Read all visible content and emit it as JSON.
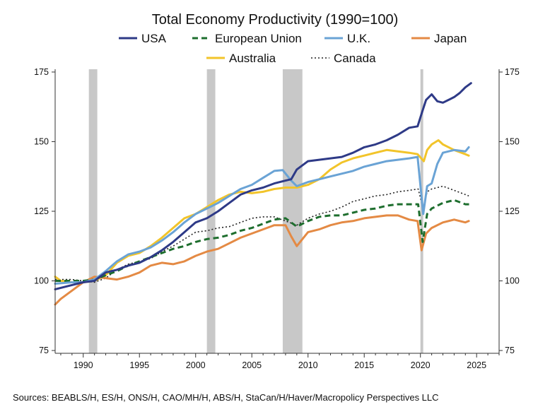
{
  "chart_data": {
    "type": "line",
    "title": "Total Economy Productivity (1990=100)",
    "source": "Sources:  BEABLS/H, ES/H, ONS/H, CAO/MH/H, ABS/H, StaCan/H/Haver/Macropolicy Perspectives LLC",
    "xlim": [
      1987.5,
      2027.0
    ],
    "ylim": [
      74,
      176
    ],
    "x_ticks": [
      1990,
      1995,
      2000,
      2005,
      2010,
      2015,
      2020,
      2025
    ],
    "x_tick_labels": [
      "1990",
      "1995",
      "2000",
      "2005",
      "2010",
      "2015",
      "2020",
      "2025"
    ],
    "y_ticks": [
      75,
      100,
      125,
      150,
      175
    ],
    "y_tick_labels": [
      "75",
      "100",
      "125",
      "150",
      "175"
    ],
    "right_y_tick_labels": [
      "75",
      "100",
      "125",
      "150",
      "175"
    ],
    "recessions": [
      [
        1990.5,
        1991.25
      ],
      [
        2001.0,
        2001.75
      ],
      [
        2007.75,
        2009.5
      ],
      [
        2020.0,
        2020.25
      ]
    ],
    "colors": {
      "recession": "#c8c8c8",
      "axis": "#333333"
    },
    "series": [
      {
        "name": "USA",
        "color": "#2e3a87",
        "dash": "none",
        "width": 3,
        "points": [
          [
            1987.5,
            97
          ],
          [
            1988,
            97.5
          ],
          [
            1989,
            98.5
          ],
          [
            1990,
            99.5
          ],
          [
            1991,
            100
          ],
          [
            1992,
            103
          ],
          [
            1993,
            104
          ],
          [
            1994,
            105.5
          ],
          [
            1995,
            106.5
          ],
          [
            1996,
            108.5
          ],
          [
            1997,
            111
          ],
          [
            1998,
            114
          ],
          [
            1999,
            117.5
          ],
          [
            2000,
            121
          ],
          [
            2001,
            122.5
          ],
          [
            2002,
            125
          ],
          [
            2003,
            128
          ],
          [
            2004,
            131
          ],
          [
            2005,
            132.5
          ],
          [
            2006,
            133.5
          ],
          [
            2007,
            135
          ],
          [
            2008,
            136
          ],
          [
            2008.5,
            136.5
          ],
          [
            2009,
            140
          ],
          [
            2010,
            143
          ],
          [
            2011,
            143.5
          ],
          [
            2012,
            144
          ],
          [
            2013,
            144.5
          ],
          [
            2014,
            146
          ],
          [
            2015,
            148
          ],
          [
            2016,
            149
          ],
          [
            2017,
            150.5
          ],
          [
            2018,
            152.5
          ],
          [
            2019,
            155
          ],
          [
            2019.75,
            155.5
          ],
          [
            2020.1,
            160
          ],
          [
            2020.5,
            165
          ],
          [
            2021,
            167
          ],
          [
            2021.5,
            164.5
          ],
          [
            2022,
            164
          ],
          [
            2022.5,
            165
          ],
          [
            2023,
            166
          ],
          [
            2023.5,
            167.5
          ],
          [
            2024,
            169.5
          ],
          [
            2024.5,
            171
          ]
        ]
      },
      {
        "name": "European Union",
        "color": "#1e6e2e",
        "dash": "8,5",
        "width": 3,
        "points": [
          [
            1987.5,
            100
          ],
          [
            1990,
            100
          ],
          [
            1991,
            100.5
          ],
          [
            1992,
            102
          ],
          [
            1993,
            103.5
          ],
          [
            1994,
            105.5
          ],
          [
            1995,
            107
          ],
          [
            1996,
            108.5
          ],
          [
            1997,
            110
          ],
          [
            1998,
            111.5
          ],
          [
            1999,
            112.5
          ],
          [
            2000,
            114
          ],
          [
            2001,
            115
          ],
          [
            2002,
            115.5
          ],
          [
            2003,
            116.5
          ],
          [
            2004,
            118
          ],
          [
            2005,
            119
          ],
          [
            2006,
            120.5
          ],
          [
            2007,
            122
          ],
          [
            2008,
            122.5
          ],
          [
            2009,
            119.5
          ],
          [
            2010,
            121.5
          ],
          [
            2011,
            123
          ],
          [
            2012,
            123.5
          ],
          [
            2013,
            123.5
          ],
          [
            2014,
            124.5
          ],
          [
            2015,
            125.5
          ],
          [
            2016,
            126
          ],
          [
            2017,
            127
          ],
          [
            2018,
            127.5
          ],
          [
            2019,
            127.5
          ],
          [
            2019.8,
            127.5
          ],
          [
            2020.2,
            114
          ],
          [
            2020.6,
            124
          ],
          [
            2021,
            126
          ],
          [
            2022,
            128
          ],
          [
            2023,
            129
          ],
          [
            2024,
            127.5
          ],
          [
            2024.5,
            127.5
          ]
        ]
      },
      {
        "name": "U.K.",
        "color": "#6aa3d5",
        "dash": "none",
        "width": 3,
        "points": [
          [
            1987.5,
            99
          ],
          [
            1989,
            99.5
          ],
          [
            1990,
            99.5
          ],
          [
            1991,
            100.5
          ],
          [
            1992,
            103.5
          ],
          [
            1993,
            107
          ],
          [
            1994,
            109.5
          ],
          [
            1995,
            110.5
          ],
          [
            1996,
            112
          ],
          [
            1997,
            114.5
          ],
          [
            1998,
            117.5
          ],
          [
            1999,
            121
          ],
          [
            2000,
            124
          ],
          [
            2001,
            126
          ],
          [
            2002,
            128
          ],
          [
            2003,
            130.5
          ],
          [
            2004,
            133
          ],
          [
            2005,
            134.5
          ],
          [
            2006,
            137
          ],
          [
            2007,
            139.5
          ],
          [
            2007.75,
            139.8
          ],
          [
            2008.5,
            136
          ],
          [
            2009,
            134
          ],
          [
            2010,
            135.5
          ],
          [
            2011,
            136.5
          ],
          [
            2012,
            137.5
          ],
          [
            2013,
            138.5
          ],
          [
            2014,
            139.5
          ],
          [
            2015,
            141
          ],
          [
            2016,
            142
          ],
          [
            2017,
            143
          ],
          [
            2018,
            143.5
          ],
          [
            2019,
            144
          ],
          [
            2019.75,
            144.5
          ],
          [
            2020.25,
            124
          ],
          [
            2020.6,
            134
          ],
          [
            2021,
            135
          ],
          [
            2021.5,
            142
          ],
          [
            2022,
            146
          ],
          [
            2023,
            147
          ],
          [
            2024,
            146.5
          ],
          [
            2024.3,
            148
          ]
        ]
      },
      {
        "name": "Japan",
        "color": "#e48a44",
        "dash": "none",
        "width": 3,
        "points": [
          [
            1987.5,
            91.5
          ],
          [
            1988,
            93.5
          ],
          [
            1989,
            96.5
          ],
          [
            1990,
            99.5
          ],
          [
            1991,
            101.5
          ],
          [
            1992,
            101
          ],
          [
            1993,
            100.5
          ],
          [
            1994,
            101.5
          ],
          [
            1995,
            103
          ],
          [
            1996,
            105.5
          ],
          [
            1997,
            106.5
          ],
          [
            1998,
            106
          ],
          [
            1999,
            107
          ],
          [
            2000,
            109
          ],
          [
            2001,
            110.5
          ],
          [
            2002,
            111.5
          ],
          [
            2003,
            113.5
          ],
          [
            2004,
            115.5
          ],
          [
            2005,
            117
          ],
          [
            2006,
            118.5
          ],
          [
            2007,
            120
          ],
          [
            2008,
            120
          ],
          [
            2008.5,
            116
          ],
          [
            2009,
            112.5
          ],
          [
            2010,
            117.5
          ],
          [
            2011,
            118.5
          ],
          [
            2012,
            120
          ],
          [
            2013,
            121
          ],
          [
            2014,
            121.5
          ],
          [
            2015,
            122.5
          ],
          [
            2016,
            123
          ],
          [
            2017,
            123.5
          ],
          [
            2018,
            123.5
          ],
          [
            2019,
            122
          ],
          [
            2019.75,
            121.5
          ],
          [
            2020.1,
            111
          ],
          [
            2020.5,
            117
          ],
          [
            2021,
            119
          ],
          [
            2022,
            121
          ],
          [
            2023,
            122
          ],
          [
            2024,
            121
          ],
          [
            2024.3,
            121.5
          ]
        ]
      },
      {
        "name": "Australia",
        "color": "#f2c42a",
        "dash": "none",
        "width": 3,
        "points": [
          [
            1987.5,
            101.5
          ],
          [
            1988,
            100
          ],
          [
            1989,
            99.5
          ],
          [
            1990,
            99.5
          ],
          [
            1991,
            100
          ],
          [
            1992,
            102
          ],
          [
            1993,
            106.5
          ],
          [
            1994,
            109
          ],
          [
            1995,
            110
          ],
          [
            1996,
            112.5
          ],
          [
            1997,
            115.5
          ],
          [
            1998,
            119
          ],
          [
            1999,
            122.5
          ],
          [
            2000,
            124
          ],
          [
            2001,
            126.5
          ],
          [
            2002,
            129
          ],
          [
            2003,
            131
          ],
          [
            2004,
            132
          ],
          [
            2005,
            131.5
          ],
          [
            2006,
            132
          ],
          [
            2007,
            133
          ],
          [
            2008,
            133.5
          ],
          [
            2009,
            133.5
          ],
          [
            2010,
            134.5
          ],
          [
            2011,
            136.5
          ],
          [
            2012,
            140
          ],
          [
            2013,
            142.5
          ],
          [
            2014,
            144
          ],
          [
            2015,
            145
          ],
          [
            2016,
            146
          ],
          [
            2017,
            147
          ],
          [
            2018,
            146.5
          ],
          [
            2019,
            146
          ],
          [
            2019.75,
            145.5
          ],
          [
            2020.3,
            143
          ],
          [
            2020.6,
            147
          ],
          [
            2021,
            149
          ],
          [
            2021.6,
            150.5
          ],
          [
            2022,
            149
          ],
          [
            2023,
            147
          ],
          [
            2024,
            145.5
          ],
          [
            2024.3,
            145
          ]
        ]
      },
      {
        "name": "Canada",
        "color": "#222222",
        "dash": "2,3",
        "width": 1.6,
        "points": [
          [
            1987.5,
            100.5
          ],
          [
            1989,
            100.5
          ],
          [
            1990,
            100
          ],
          [
            1991,
            99.5
          ],
          [
            1992,
            101
          ],
          [
            1993,
            104
          ],
          [
            1994,
            106
          ],
          [
            1995,
            107
          ],
          [
            1996,
            108
          ],
          [
            1997,
            110.5
          ],
          [
            1998,
            112.5
          ],
          [
            1999,
            115
          ],
          [
            2000,
            117.5
          ],
          [
            2001,
            118
          ],
          [
            2002,
            119
          ],
          [
            2003,
            119.5
          ],
          [
            2004,
            121
          ],
          [
            2005,
            122.5
          ],
          [
            2006,
            123
          ],
          [
            2007,
            123
          ],
          [
            2008,
            121.5
          ],
          [
            2009,
            120
          ],
          [
            2010,
            122.5
          ],
          [
            2011,
            124
          ],
          [
            2012,
            125
          ],
          [
            2013,
            126.5
          ],
          [
            2014,
            128.5
          ],
          [
            2015,
            129.5
          ],
          [
            2016,
            130.5
          ],
          [
            2017,
            131
          ],
          [
            2018,
            132
          ],
          [
            2019,
            132.5
          ],
          [
            2019.8,
            133
          ],
          [
            2020.25,
            126
          ],
          [
            2020.6,
            132
          ],
          [
            2021,
            133
          ],
          [
            2022,
            134
          ],
          [
            2023,
            132.5
          ],
          [
            2024,
            131
          ],
          [
            2024.3,
            130.5
          ]
        ]
      }
    ]
  }
}
